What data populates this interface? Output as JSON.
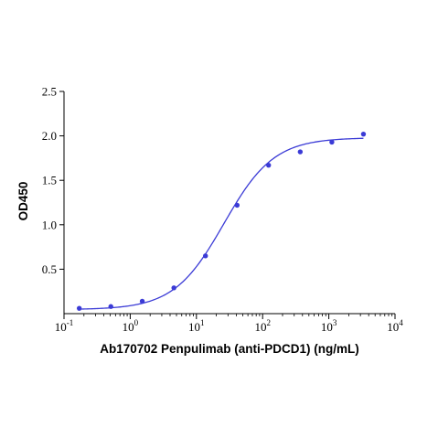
{
  "chart_data": {
    "type": "scatter",
    "title": "",
    "xlabel": "Ab170702 Penpulimab (anti-PDCD1) (ng/mL)",
    "ylabel": "OD450",
    "xscale": "log",
    "xlim": [
      0.1,
      10000
    ],
    "ylim": [
      0,
      2.5
    ],
    "x_ticks": [
      {
        "value": 0.1,
        "base": "10",
        "exp": "-1"
      },
      {
        "value": 1,
        "base": "10",
        "exp": "0"
      },
      {
        "value": 10,
        "base": "10",
        "exp": "1"
      },
      {
        "value": 100,
        "base": "10",
        "exp": "2"
      },
      {
        "value": 1000,
        "base": "10",
        "exp": "3"
      },
      {
        "value": 10000,
        "base": "10",
        "exp": "4"
      }
    ],
    "y_ticks": [
      {
        "value": 0.5,
        "label": "0.5"
      },
      {
        "value": 1.0,
        "label": "1.0"
      },
      {
        "value": 1.5,
        "label": "1.5"
      },
      {
        "value": 2.0,
        "label": "2.0"
      },
      {
        "value": 2.5,
        "label": "2.5"
      }
    ],
    "grid": false,
    "color": "#3b3bd6",
    "series": [
      {
        "x": [
          0.17,
          0.51,
          1.52,
          4.57,
          13.7,
          41.2,
          123,
          370,
          1111,
          3333
        ],
        "y": [
          0.06,
          0.08,
          0.14,
          0.29,
          0.65,
          1.22,
          1.67,
          1.82,
          1.93,
          2.02
        ]
      }
    ],
    "fit_curve": {
      "type": "4PL",
      "bottom": 0.045,
      "top": 1.98,
      "ec50": 26,
      "hill": 1.15
    }
  }
}
